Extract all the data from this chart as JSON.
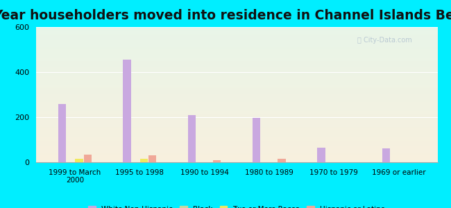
{
  "title": "Year householders moved into residence in Channel Islands Beach",
  "categories": [
    "1999 to March\n2000",
    "1995 to 1998",
    "1990 to 1994",
    "1980 to 1989",
    "1970 to 1979",
    "1969 or earlier"
  ],
  "series": {
    "White Non-Hispanic": [
      260,
      455,
      210,
      198,
      65,
      62
    ],
    "Black": [
      0,
      0,
      0,
      0,
      0,
      0
    ],
    "Two or More Races": [
      15,
      15,
      0,
      0,
      0,
      0
    ],
    "Hispanic or Latino": [
      35,
      30,
      8,
      15,
      0,
      0
    ]
  },
  "colors": {
    "White Non-Hispanic": "#c9a8e0",
    "Black": "#c8d8a0",
    "Two or More Races": "#f0e860",
    "Hispanic or Latino": "#f0a898"
  },
  "ylim": [
    0,
    600
  ],
  "yticks": [
    0,
    200,
    400,
    600
  ],
  "background_color": "#00eeff",
  "bar_width": 0.12,
  "title_fontsize": 13.5
}
